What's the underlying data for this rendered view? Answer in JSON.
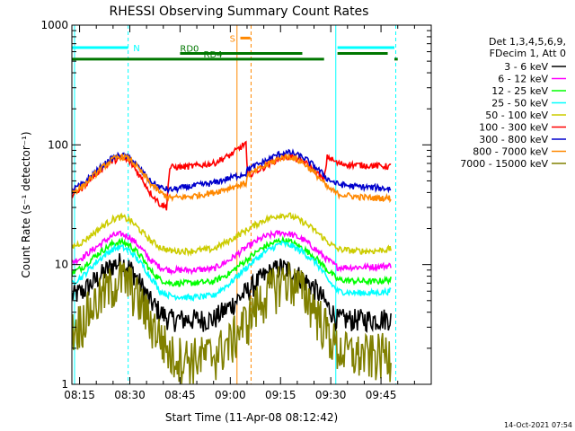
{
  "chart_data": {
    "type": "line",
    "title": "RHESSI Observing Summary Count Rates",
    "xlabel": "Start Time (11-Apr-08 08:12:42)",
    "ylabel": "Count Rate (s⁻¹ detector⁻¹)",
    "y_scale": "log",
    "ylim": [
      1,
      1000
    ],
    "x_unit": "minutes after 08:00",
    "xlim": [
      12.7,
      120
    ],
    "x_ticks": [
      {
        "min": 15,
        "label": "08:15"
      },
      {
        "min": 30,
        "label": "08:30"
      },
      {
        "min": 45,
        "label": "08:45"
      },
      {
        "min": 60,
        "label": "09:00"
      },
      {
        "min": 75,
        "label": "09:15"
      },
      {
        "min": 90,
        "label": "09:30"
      },
      {
        "min": 105,
        "label": "09:45"
      }
    ],
    "y_ticks": [
      {
        "value": 1,
        "label": "1"
      },
      {
        "value": 10,
        "label": "10"
      },
      {
        "value": 100,
        "label": "100"
      },
      {
        "value": 1000,
        "label": "1000"
      }
    ],
    "legend_header": [
      "Det 1,3,4,5,6,9,",
      "FDecim 1, Att 0"
    ],
    "legend_position": "right",
    "series": [
      {
        "name": "3 - 6 keV",
        "color": "#000000",
        "points": [
          [
            12.7,
            5.5
          ],
          [
            16,
            6
          ],
          [
            20,
            7.5
          ],
          [
            25,
            10
          ],
          [
            27.5,
            10.5
          ],
          [
            30,
            9.5
          ],
          [
            33,
            7
          ],
          [
            36,
            5
          ],
          [
            39,
            4
          ],
          [
            42,
            3.5
          ],
          [
            48,
            3.5
          ],
          [
            55,
            3.5
          ],
          [
            60,
            4.5
          ],
          [
            65,
            6
          ],
          [
            70,
            8
          ],
          [
            75,
            9.5
          ],
          [
            78,
            9
          ],
          [
            82,
            7.5
          ],
          [
            86,
            6
          ],
          [
            89,
            4.5
          ],
          [
            92,
            3.5
          ],
          [
            97,
            3.5
          ],
          [
            103,
            3.5
          ],
          [
            108,
            3.6
          ]
        ]
      },
      {
        "name": "6 - 12 keV",
        "color": "#ff00ff",
        "points": [
          [
            12.7,
            10.5
          ],
          [
            16,
            11.5
          ],
          [
            20,
            14
          ],
          [
            25,
            17.5
          ],
          [
            27.5,
            18
          ],
          [
            30,
            17
          ],
          [
            33,
            14
          ],
          [
            36,
            11
          ],
          [
            39,
            9.5
          ],
          [
            42,
            9
          ],
          [
            48,
            9
          ],
          [
            55,
            9.2
          ],
          [
            60,
            11
          ],
          [
            65,
            14
          ],
          [
            70,
            17
          ],
          [
            75,
            18.5
          ],
          [
            78,
            18
          ],
          [
            82,
            16
          ],
          [
            86,
            13
          ],
          [
            89,
            11
          ],
          [
            92,
            9.5
          ],
          [
            97,
            9.5
          ],
          [
            103,
            9.6
          ],
          [
            108,
            9.8
          ]
        ]
      },
      {
        "name": "12 - 25 keV",
        "color": "#00ff00",
        "points": [
          [
            12.7,
            8.5
          ],
          [
            16,
            9.5
          ],
          [
            20,
            12
          ],
          [
            25,
            15
          ],
          [
            27.5,
            15.5
          ],
          [
            30,
            14.5
          ],
          [
            33,
            12
          ],
          [
            36,
            9
          ],
          [
            39,
            7.5
          ],
          [
            42,
            7
          ],
          [
            48,
            7
          ],
          [
            55,
            7.2
          ],
          [
            60,
            8.5
          ],
          [
            65,
            11
          ],
          [
            70,
            14
          ],
          [
            75,
            16
          ],
          [
            78,
            15.5
          ],
          [
            82,
            13.5
          ],
          [
            86,
            11
          ],
          [
            89,
            9
          ],
          [
            92,
            7.5
          ],
          [
            97,
            7.3
          ],
          [
            103,
            7.2
          ],
          [
            108,
            7.5
          ]
        ]
      },
      {
        "name": "25 - 50 keV",
        "color": "#00ffff",
        "points": [
          [
            12.7,
            7
          ],
          [
            16,
            8
          ],
          [
            20,
            10.5
          ],
          [
            25,
            13.5
          ],
          [
            27.5,
            14
          ],
          [
            30,
            13
          ],
          [
            33,
            10.5
          ],
          [
            36,
            8
          ],
          [
            39,
            6
          ],
          [
            42,
            5.5
          ],
          [
            48,
            5.3
          ],
          [
            55,
            5.5
          ],
          [
            60,
            7
          ],
          [
            65,
            9.5
          ],
          [
            70,
            12.5
          ],
          [
            75,
            15
          ],
          [
            78,
            14.5
          ],
          [
            82,
            12.5
          ],
          [
            86,
            10
          ],
          [
            89,
            7.5
          ],
          [
            92,
            6
          ],
          [
            97,
            5.8
          ],
          [
            103,
            5.8
          ],
          [
            108,
            6
          ]
        ]
      },
      {
        "name": "50 - 100 keV",
        "color": "#cccc00",
        "points": [
          [
            12.7,
            14
          ],
          [
            16,
            15.5
          ],
          [
            20,
            19
          ],
          [
            25,
            24
          ],
          [
            27.5,
            25
          ],
          [
            30,
            23.5
          ],
          [
            33,
            19.5
          ],
          [
            36,
            16
          ],
          [
            39,
            14
          ],
          [
            42,
            13
          ],
          [
            48,
            13
          ],
          [
            55,
            13.5
          ],
          [
            60,
            16
          ],
          [
            65,
            19.5
          ],
          [
            70,
            23.5
          ],
          [
            75,
            26
          ],
          [
            78,
            25.5
          ],
          [
            82,
            22.5
          ],
          [
            86,
            18.5
          ],
          [
            89,
            15.5
          ],
          [
            92,
            13.5
          ],
          [
            97,
            13
          ],
          [
            103,
            13
          ],
          [
            108,
            13.5
          ]
        ]
      },
      {
        "name": "100 - 300 keV",
        "color": "#ff0000",
        "points": [
          [
            12.7,
            38
          ],
          [
            16,
            44
          ],
          [
            20,
            58
          ],
          [
            25,
            74
          ],
          [
            27.5,
            78
          ],
          [
            30,
            72
          ],
          [
            33,
            55
          ],
          [
            36,
            40
          ],
          [
            39,
            32
          ],
          [
            41,
            30
          ],
          [
            42,
            65
          ],
          [
            48,
            66
          ],
          [
            55,
            70
          ],
          [
            60,
            82
          ],
          [
            63,
            95
          ],
          [
            64.8,
            105
          ],
          [
            65,
            55
          ],
          [
            70,
            65
          ],
          [
            75,
            78
          ],
          [
            78,
            80
          ],
          [
            82,
            72
          ],
          [
            86,
            58
          ],
          [
            88,
            50
          ],
          [
            89,
            80
          ],
          [
            92,
            70
          ],
          [
            97,
            68
          ],
          [
            103,
            67
          ],
          [
            108,
            66
          ]
        ]
      },
      {
        "name": "300 - 800 keV",
        "color": "#0000cc",
        "points": [
          [
            12.7,
            42
          ],
          [
            16,
            47
          ],
          [
            20,
            60
          ],
          [
            25,
            78
          ],
          [
            27.5,
            82
          ],
          [
            30,
            78
          ],
          [
            33,
            63
          ],
          [
            36,
            50
          ],
          [
            39,
            44
          ],
          [
            42,
            42
          ],
          [
            48,
            45
          ],
          [
            55,
            48
          ],
          [
            60,
            53
          ],
          [
            64.8,
            58
          ],
          [
            65,
            62
          ],
          [
            70,
            72
          ],
          [
            75,
            85
          ],
          [
            78,
            86
          ],
          [
            82,
            78
          ],
          [
            86,
            63
          ],
          [
            89,
            52
          ],
          [
            92,
            47
          ],
          [
            97,
            45
          ],
          [
            103,
            44
          ],
          [
            108,
            43
          ]
        ]
      },
      {
        "name": "800 - 7000 keV",
        "color": "#ff8800",
        "points": [
          [
            12.7,
            40
          ],
          [
            16,
            45
          ],
          [
            20,
            58
          ],
          [
            25,
            76
          ],
          [
            27.5,
            80
          ],
          [
            30,
            76
          ],
          [
            33,
            61
          ],
          [
            36,
            48
          ],
          [
            39,
            40
          ],
          [
            42,
            36
          ],
          [
            48,
            37
          ],
          [
            55,
            40
          ],
          [
            60,
            44
          ],
          [
            64.8,
            48
          ],
          [
            65,
            55
          ],
          [
            70,
            66
          ],
          [
            75,
            78
          ],
          [
            78,
            80
          ],
          [
            82,
            70
          ],
          [
            86,
            55
          ],
          [
            89,
            44
          ],
          [
            92,
            39
          ],
          [
            97,
            37
          ],
          [
            103,
            36
          ],
          [
            108,
            36
          ]
        ]
      },
      {
        "name": "7000 - 15000 keV",
        "color": "#808000",
        "points": [
          [
            12.7,
            2.8
          ],
          [
            16,
            3.6
          ],
          [
            20,
            5
          ],
          [
            25,
            7
          ],
          [
            27.5,
            7.8
          ],
          [
            30,
            7
          ],
          [
            33,
            5
          ],
          [
            36,
            3.5
          ],
          [
            39,
            2.6
          ],
          [
            42,
            1.8
          ],
          [
            48,
            1.7
          ],
          [
            55,
            1.8
          ],
          [
            60,
            2.3
          ],
          [
            65,
            3.5
          ],
          [
            70,
            5.5
          ],
          [
            75,
            7.5
          ],
          [
            78,
            7.6
          ],
          [
            82,
            6
          ],
          [
            86,
            4
          ],
          [
            89,
            2.8
          ],
          [
            92,
            2
          ],
          [
            97,
            1.8
          ],
          [
            103,
            1.8
          ],
          [
            108,
            1.9
          ]
        ]
      }
    ],
    "flags": [
      {
        "label": "N",
        "color": "#00ffff",
        "value": 650,
        "segments": [
          [
            12.7,
            29.5
          ],
          [
            92,
            109
          ]
        ]
      },
      {
        "label": "RD0",
        "color": "#007700",
        "value": 580,
        "segments": [
          [
            45,
            81.5
          ],
          [
            92,
            107
          ]
        ]
      },
      {
        "label": "RD4",
        "color": "#007700",
        "value": 520,
        "segments": [
          [
            12.7,
            88
          ],
          [
            109,
            110
          ]
        ]
      },
      {
        "label": "S",
        "color": "#ff8800",
        "value": 780,
        "segments": [
          [
            63,
            66
          ]
        ]
      }
    ],
    "markers": [
      {
        "x": 13.5,
        "color": "#00ffff",
        "style": "solid"
      },
      {
        "x": 29.5,
        "color": "#00ffff",
        "style": "dashed"
      },
      {
        "x": 62.0,
        "color": "#ff8800",
        "style": "solid"
      },
      {
        "x": 66.2,
        "color": "#ff8800",
        "style": "dashed"
      },
      {
        "x": 91.5,
        "color": "#00ffff",
        "style": "solid"
      },
      {
        "x": 109.4,
        "color": "#00ffff",
        "style": "dashed"
      }
    ],
    "timestamp": "14-Oct-2021 07:54"
  }
}
